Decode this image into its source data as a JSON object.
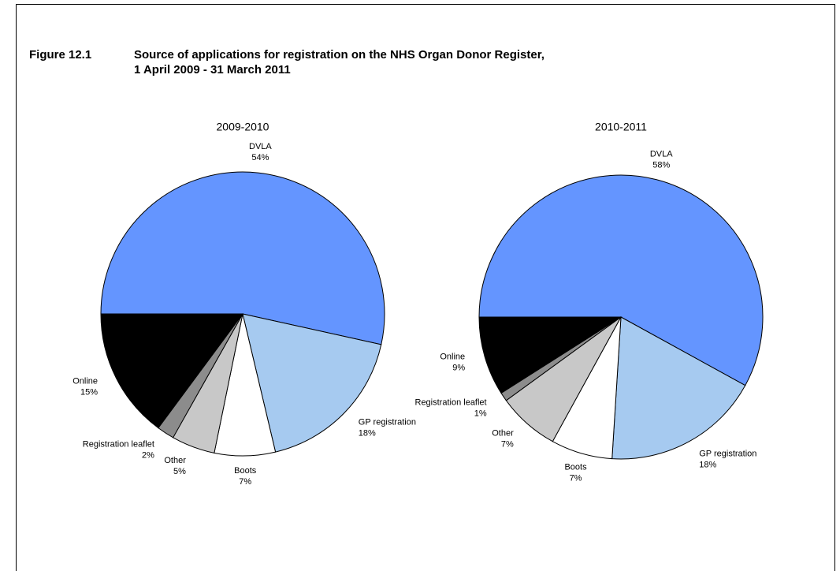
{
  "figure": {
    "label": "Figure 12.1",
    "title_lines": [
      "Source of applications for registration on the NHS Organ Donor Register,",
      "1 April 2009 - 31 March 2011"
    ]
  },
  "chart_data": [
    {
      "type": "pie",
      "title": "2009-2010",
      "categories": [
        "DVLA",
        "GP registration",
        "Boots",
        "Other",
        "Registration leaflet",
        "Online"
      ],
      "values": [
        54,
        18,
        7,
        5,
        2,
        15
      ],
      "value_labels": [
        "54%",
        "18%",
        "7%",
        "5%",
        "2%",
        "15%"
      ],
      "colors": [
        "#6495ff",
        "#a6caf0",
        "#ffffff",
        "#c8c8c8",
        "#8c8c8c",
        "#000000"
      ]
    },
    {
      "type": "pie",
      "title": "2010-2011",
      "categories": [
        "DVLA",
        "GP registration",
        "Boots",
        "Other",
        "Registration leaflet",
        "Online"
      ],
      "values": [
        58,
        18,
        7,
        7,
        1,
        9
      ],
      "value_labels": [
        "58%",
        "18%",
        "7%",
        "7%",
        "1%",
        "9%"
      ],
      "colors": [
        "#6495ff",
        "#a6caf0",
        "#ffffff",
        "#c8c8c8",
        "#8c8c8c",
        "#000000"
      ]
    }
  ]
}
